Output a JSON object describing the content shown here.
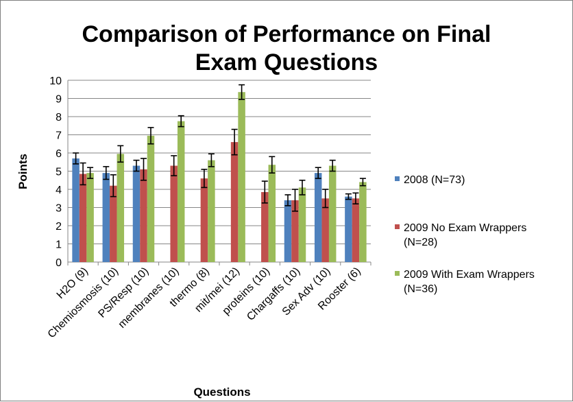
{
  "chart_data": {
    "type": "bar",
    "title": "Comparison of Performance on Final Exam Questions",
    "title_lines": [
      "Comparison of Performance on Final",
      "Exam Questions"
    ],
    "xlabel": "Questions",
    "ylabel": "Points",
    "ylim": [
      0,
      10
    ],
    "yticks": [
      0,
      1,
      2,
      3,
      4,
      5,
      6,
      7,
      8,
      9,
      10
    ],
    "grid": true,
    "legend_position": "right",
    "categories": [
      "H2O (9)",
      "Chemiosmosis (10)",
      "PS/Resp (10)",
      "membranes (10)",
      "thermo (8)",
      "mit/mei (12)",
      "proteins (10)",
      "Chargaffs (10)",
      "Sex Adv (10)",
      "Rooster (6)"
    ],
    "series": [
      {
        "name": "2008 (N=73)",
        "legend_lines": [
          "2008 (N=73)"
        ],
        "color": "#4f81bd",
        "values": [
          5.7,
          4.9,
          5.3,
          null,
          null,
          null,
          null,
          3.4,
          4.9,
          3.6
        ],
        "errors": [
          0.3,
          0.35,
          0.3,
          null,
          null,
          null,
          null,
          0.3,
          0.3,
          0.15
        ]
      },
      {
        "name": "2009 No Exam Wrappers (N=28)",
        "legend_lines": [
          "2009 No Exam Wrappers",
          "(N=28)"
        ],
        "color": "#c0504d",
        "values": [
          4.85,
          4.2,
          5.1,
          5.3,
          4.6,
          6.6,
          3.85,
          3.4,
          3.5,
          3.5
        ],
        "errors": [
          0.6,
          0.6,
          0.6,
          0.55,
          0.5,
          0.7,
          0.6,
          0.6,
          0.5,
          0.3
        ]
      },
      {
        "name": "2009 With Exam Wrappers (N=36)",
        "legend_lines": [
          "2009 With Exam Wrappers",
          "(N=36)"
        ],
        "color": "#9bbb59",
        "values": [
          4.9,
          5.95,
          6.95,
          7.75,
          5.6,
          9.35,
          5.35,
          4.1,
          5.3,
          4.4
        ],
        "errors": [
          0.3,
          0.45,
          0.45,
          0.3,
          0.35,
          0.4,
          0.45,
          0.4,
          0.3,
          0.2
        ]
      }
    ]
  }
}
